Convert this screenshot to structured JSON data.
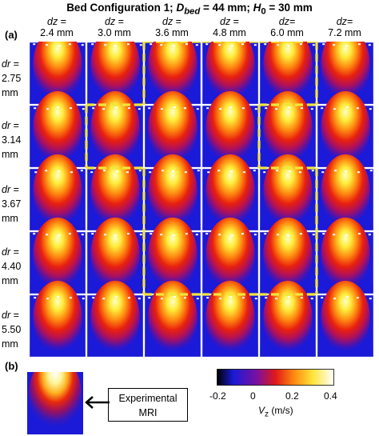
{
  "title": {
    "prefix": "Bed Configuration 1; ",
    "dbed_sym": "D",
    "dbed_sub": "bed",
    "dbed_val": " = 44 mm; ",
    "h0_sym": "H",
    "h0_sub": "0",
    "h0_val": " = 30 mm"
  },
  "panels": {
    "a": "(a)",
    "b": "(b)"
  },
  "columns": [
    {
      "sym": "dz",
      "eq": " =",
      "val": "2.4 mm"
    },
    {
      "sym": "dz",
      "eq": " =",
      "val": "3.0 mm"
    },
    {
      "sym": "dz",
      "eq": " =",
      "val": "3.6 mm"
    },
    {
      "sym": "dz",
      "eq": " =",
      "val": "4.8 mm"
    },
    {
      "sym": "dz",
      "eq": "=",
      "val": "6.0 mm"
    },
    {
      "sym": "dz",
      "eq": "=",
      "val": "7.2 mm"
    }
  ],
  "rows": [
    {
      "sym": "dr",
      "eq": " =",
      "num": "2.75",
      "unit": "mm"
    },
    {
      "sym": "dr",
      "eq": " =",
      "num": "3.14",
      "unit": "mm"
    },
    {
      "sym": "dr",
      "eq": " =",
      "num": "3.67",
      "unit": "mm"
    },
    {
      "sym": "dr",
      "eq": " =",
      "num": "4.40",
      "unit": "mm"
    },
    {
      "sym": "dr",
      "eq": " =",
      "num": "5.50",
      "unit": "mm"
    }
  ],
  "experimental_label": [
    "Experimental",
    "MRI"
  ],
  "colorbar": {
    "ticks": [
      "-0.2",
      "0",
      "0.2",
      "0.4"
    ],
    "label_sym": "V",
    "label_sub": "z",
    "label_unit": " (m/s)"
  },
  "colors": {
    "background_field": "#1a1ad8",
    "highlight_border": "#f2e63c"
  },
  "highlighted_cells": [
    [
      0,
      2
    ],
    [
      0,
      3
    ],
    [
      0,
      4
    ],
    [
      1,
      1
    ],
    [
      1,
      2
    ],
    [
      1,
      3
    ],
    [
      2,
      2
    ],
    [
      2,
      3
    ],
    [
      2,
      4
    ],
    [
      3,
      2
    ],
    [
      3,
      3
    ],
    [
      3,
      4
    ]
  ]
}
